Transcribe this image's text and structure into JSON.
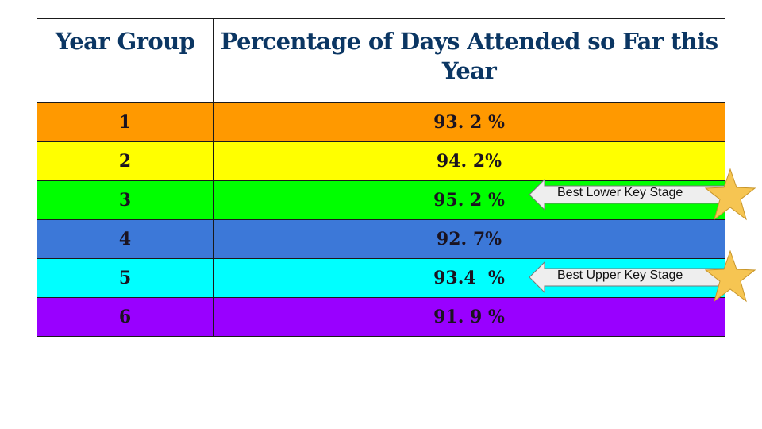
{
  "table": {
    "headers": [
      "Year Group",
      "Percentage of Days Attended so Far this Year"
    ],
    "rows": [
      {
        "year": "1",
        "percentage": "93. 2 %",
        "color": "#ff9900"
      },
      {
        "year": "2",
        "percentage": "94. 2%",
        "color": "#ffff00"
      },
      {
        "year": "3",
        "percentage": "95. 2 %",
        "color": "#00ff00"
      },
      {
        "year": "4",
        "percentage": "92. 7%",
        "color": "#3c78d8"
      },
      {
        "year": "5",
        "percentage": "93.4  %",
        "color": "#00ffff"
      },
      {
        "year": "6",
        "percentage": "91. 9 %",
        "color": "#9900ff"
      }
    ]
  },
  "callouts": [
    {
      "label": "Best Lower Key Stage",
      "row": 3,
      "icon": "star-icon",
      "star_color": "#f6c552"
    },
    {
      "label": "Best Upper Key Stage",
      "row": 5,
      "icon": "star-icon",
      "star_color": "#f6c552"
    }
  ]
}
